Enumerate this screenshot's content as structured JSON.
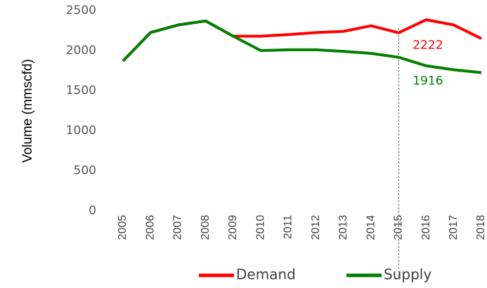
{
  "chart_data": {
    "type": "line",
    "y_label": "Volume (mmscfd)",
    "x": [
      2005,
      2006,
      2007,
      2008,
      2009,
      2010,
      2011,
      2012,
      2013,
      2014,
      2015,
      2016,
      2017,
      2018
    ],
    "series": [
      {
        "name": "Demand",
        "color": "#ff0000",
        "values": [
          1870,
          2225,
          2320,
          2370,
          2180,
          2180,
          2200,
          2225,
          2240,
          2310,
          2222,
          2385,
          2320,
          2150
        ],
        "value_labels": [
          null,
          null,
          null,
          null,
          null,
          null,
          null,
          null,
          null,
          null,
          "2222",
          null,
          null,
          null
        ]
      },
      {
        "name": "Supply",
        "color": "#008000",
        "values": [
          1870,
          2225,
          2320,
          2370,
          2180,
          2000,
          2010,
          2010,
          1990,
          1965,
          1916,
          1810,
          1760,
          1725
        ],
        "value_labels": [
          null,
          null,
          null,
          null,
          null,
          null,
          null,
          null,
          null,
          null,
          "1916",
          null,
          null,
          null
        ]
      }
    ],
    "xlim": [
      2005,
      2018
    ],
    "xticks": [
      2005,
      2006,
      2007,
      2008,
      2009,
      2010,
      2011,
      2012,
      2013,
      2014,
      2015,
      2016,
      2017,
      2018
    ],
    "ylim": [
      0,
      2500
    ],
    "yticks": [
      0,
      500,
      1000,
      1500,
      2000,
      2500
    ],
    "reference_x": 2015,
    "legend": "bottom"
  }
}
